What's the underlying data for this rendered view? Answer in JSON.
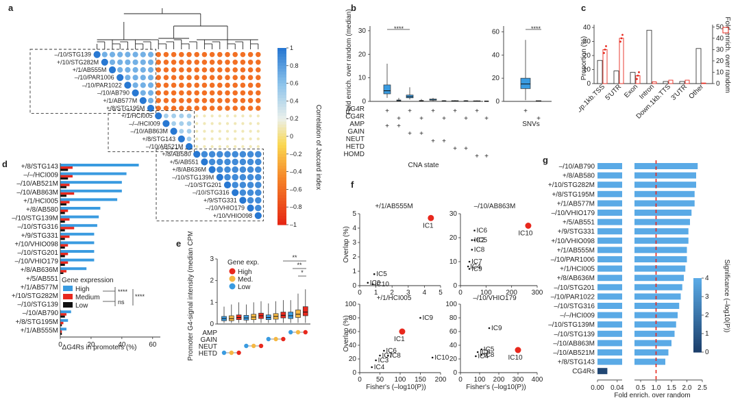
{
  "colors": {
    "blue": "#3a9be0",
    "red": "#e8281d",
    "black": "#111111",
    "orange": "#f5b843",
    "dark_blue": "#1c3f6b"
  },
  "panels": {
    "a": {
      "label": "a",
      "rows": [
        "–/10/STG139",
        "+/10/STG282M",
        "+/1/AB555M",
        "–/10/PAR1006",
        "–/10/PAR1022",
        "–/10/AB790",
        "+/1/AB577M",
        "+/8/STG195M",
        "+/1/HCI005",
        "–/–/HCI009",
        "–/10/AB863M",
        "+/8/STG143",
        "–/10/AB521M",
        "+/8/AB580",
        "+/5/AB551",
        "+/8/AB636M",
        "–/10/STG139M",
        "–/10/STG201",
        "–/10/STG316",
        "+/9/STG331",
        "–/10/VHIO179",
        "+/10/VHIO098"
      ],
      "colorbar_label": "Correlation of Jaccard index",
      "colorbar_ticks": [
        "1",
        "0.8",
        "0.6",
        "0.4",
        "0.2",
        "0",
        "–0.2",
        "–0.4",
        "–0.6",
        "–0.8",
        "–1"
      ]
    },
    "b": {
      "label": "b",
      "ylabel": "Fold enrich. over random (median)",
      "y_ticks_left": [
        "0",
        "10",
        "20",
        "30"
      ],
      "y_ticks_right": [
        "0",
        "20",
        "40",
        "60"
      ],
      "sig": "****",
      "row_labels": [
        "ΔG4R",
        "CG4R",
        "AMP",
        "GAIN",
        "NEUT",
        "HETD",
        "HOMD"
      ],
      "xlabel": "CNA state",
      "snv_label": "SNVs",
      "plus": "+"
    },
    "c": {
      "label": "c",
      "ylabel": "Proportion (%)",
      "y2label": "Fold enrich. over random",
      "y_ticks_left": [
        "0",
        "10",
        "20",
        "30",
        "40"
      ],
      "y_ticks_right": [
        "0",
        "10",
        "20",
        "30",
        "40",
        "50"
      ],
      "categories": [
        "Up.1kb.TSS",
        "5′UTR",
        "Exon",
        "Intron",
        "Down.1kb.TTS",
        "3′UTR",
        "Other"
      ]
    },
    "d": {
      "label": "d",
      "xlabel": "ΔG4Rs in promoters (%)",
      "x_ticks": [
        "0",
        "20",
        "40",
        "60"
      ],
      "legend_title": "Gene expression",
      "legend": [
        "High",
        "Medium",
        "Low"
      ],
      "sig1": "****",
      "sig2": "ns",
      "sig3": "****"
    },
    "e": {
      "label": "e",
      "ylabel": "Promoter G4-signal intensity (median CPM)",
      "y_ticks": [
        "0",
        "1",
        "2",
        "3"
      ],
      "legend_title": "Gene exp.",
      "legend": [
        "High",
        "Med.",
        "Low"
      ],
      "row_labels": [
        "AMP",
        "GAIN",
        "NEUT",
        "HETD"
      ],
      "sig": [
        "**",
        "**",
        "*"
      ]
    },
    "f": {
      "label": "f",
      "ylabel": "Overlap (%)",
      "xlabel": "Fisher's (–log10(P))",
      "titles": [
        "+/1/AB555M",
        "–/10/AB863M",
        "+/1/HCI005",
        "–/10/VHIO179"
      ]
    },
    "g": {
      "label": "g",
      "xlabel": "Fold enrich. over random",
      "x_ticks_left": [
        "0.00",
        "0.04"
      ],
      "x_ticks_right": [
        "0.5",
        "1.0",
        "1.5",
        "2.0",
        "2.5"
      ],
      "colorbar_label": "Significance (–log10(P))",
      "colorbar_ticks": [
        "4",
        "3",
        "2",
        "1",
        "0"
      ]
    }
  },
  "chart_data": [
    {
      "panel": "a",
      "type": "heatmap",
      "title": "Correlation of Jaccard index",
      "ylabels": [
        "–/10/STG139",
        "+/10/STG282M",
        "+/1/AB555M",
        "–/10/PAR1006",
        "–/10/PAR1022",
        "–/10/AB790",
        "+/1/AB577M",
        "+/8/STG195M",
        "+/1/HCI005",
        "–/–/HCI009",
        "–/10/AB863M",
        "+/8/STG143",
        "–/10/AB521M",
        "+/8/AB580",
        "+/5/AB551",
        "+/8/AB636M",
        "–/10/STG139M",
        "–/10/STG201",
        "–/10/STG316",
        "+/9/STG331",
        "–/10/VHIO179",
        "+/10/VHIO098"
      ],
      "blocks": [
        {
          "name": "cluster 1",
          "rows": [
            0,
            7
          ],
          "corr": 0.7
        },
        {
          "name": "cluster 2",
          "rows": [
            8,
            12
          ],
          "corr": 0.5
        },
        {
          "name": "cluster 3",
          "rows": [
            13,
            21
          ],
          "corr": 0.9
        }
      ],
      "off_block_cluster1_vs_rest": -0.6,
      "range": [
        -1,
        1
      ]
    },
    {
      "panel": "b",
      "type": "box",
      "ylabel": "Fold enrich. over random (median)",
      "groups": [
        "AMP/ΔG4R",
        "AMP/CG4R",
        "GAIN/ΔG4R",
        "GAIN/CG4R",
        "NEUT/ΔG4R",
        "NEUT/CG4R",
        "HETD/ΔG4R",
        "HETD/CG4R",
        "HOMD/ΔG4R",
        "HOMD/CG4R"
      ],
      "median": [
        4.5,
        0.3,
        2.0,
        0.2,
        0.6,
        0.2,
        0.2,
        0.2,
        0.15,
        0.1
      ],
      "q1": [
        3.2,
        0.1,
        1.5,
        0.1,
        0.5,
        0.1,
        0.1,
        0.1,
        0.05,
        0.05
      ],
      "q3": [
        7.0,
        0.6,
        2.7,
        0.4,
        1.0,
        0.3,
        0.3,
        0.3,
        0.25,
        0.2
      ],
      "whisker_low": [
        1.5,
        0,
        0.8,
        0,
        0.2,
        0,
        0,
        0,
        0,
        0
      ],
      "whisker_high": [
        16,
        1.5,
        6,
        1,
        1.5,
        0.5,
        0.5,
        0.5,
        0.4,
        0.3
      ],
      "ylim": [
        0,
        32
      ],
      "snv": {
        "median": 15,
        "q1": 11,
        "q3": 20,
        "whisker_low": 1,
        "whisker_high": 53,
        "cg4r_median": 0.5,
        "ylim": [
          0,
          65
        ]
      }
    },
    {
      "panel": "c",
      "type": "bar",
      "categories": [
        "Up.1kb.TSS",
        "5′UTR",
        "Exon",
        "Intron",
        "Down.1kb.TTS",
        "3′UTR",
        "Other"
      ],
      "series": [
        {
          "name": "Proportion (%)",
          "values": [
            16.5,
            9,
            8,
            38,
            1.5,
            1.5,
            25
          ]
        },
        {
          "name": "Fold enrich. over random",
          "values": [
            30,
            40,
            7,
            1.5,
            3,
            3,
            0.5
          ]
        }
      ],
      "ylim": [
        0,
        42
      ],
      "y2lim": [
        0,
        52
      ]
    },
    {
      "panel": "d",
      "type": "bar",
      "orientation": "horizontal",
      "categories": [
        "+/8/STG143",
        "–/–/HCI009",
        "–/10/AB521M",
        "–/10/AB863M",
        "+/1/HCI005",
        "+/8/AB580",
        "–/10/STG139M",
        "–/10/STG316",
        "+/9/STG331",
        "+/10/VHIO098",
        "–/10/STG201",
        "–/10/VHIO179",
        "+/8/AB636M",
        "+/5/AB551",
        "+/1/AB577M",
        "+/10/STG282M",
        "–/10/STG139",
        "–/10/AB790",
        "+/8/STG195M",
        "+/1/AB555M"
      ],
      "series": [
        {
          "name": "High",
          "values": [
            51,
            43,
            40,
            40,
            37,
            26,
            25,
            24,
            22,
            22,
            22,
            22,
            17,
            14,
            9,
            9,
            7,
            7,
            5,
            4
          ]
        },
        {
          "name": "Medium",
          "values": [
            8,
            8,
            6,
            9,
            6,
            5,
            6,
            9,
            6,
            5,
            5,
            5,
            4,
            3,
            4,
            3,
            3,
            4,
            2,
            1
          ]
        },
        {
          "name": "Low",
          "values": [
            5,
            5,
            4,
            4,
            4,
            3,
            3,
            3,
            3,
            3,
            3,
            3,
            2,
            2,
            1,
            2,
            1,
            3,
            1,
            1
          ]
        }
      ],
      "xlim": [
        0,
        65
      ],
      "xlabel": "ΔG4Rs in promoters (%)"
    },
    {
      "panel": "e",
      "type": "box",
      "groups": [
        "HETD/Low",
        "HETD/Med",
        "HETD/High",
        "NEUT/Low",
        "NEUT/Med",
        "NEUT/High",
        "GAIN/Low",
        "GAIN/Med",
        "GAIN/High",
        "AMP/Low",
        "AMP/Med",
        "AMP/High"
      ],
      "median": [
        0.25,
        0.25,
        0.3,
        0.28,
        0.32,
        0.38,
        0.3,
        0.35,
        0.4,
        0.38,
        0.45,
        0.55
      ],
      "q1": [
        0.15,
        0.15,
        0.2,
        0.18,
        0.2,
        0.25,
        0.2,
        0.22,
        0.28,
        0.25,
        0.3,
        0.38
      ],
      "q3": [
        0.35,
        0.38,
        0.42,
        0.4,
        0.45,
        0.5,
        0.42,
        0.48,
        0.55,
        0.55,
        0.65,
        0.8
      ],
      "whisker_high": [
        0.8,
        0.9,
        1.0,
        0.9,
        1.0,
        1.05,
        0.95,
        1.05,
        1.1,
        1.1,
        1.4,
        1.6
      ],
      "ylim": [
        0,
        3
      ]
    },
    {
      "panel": "f",
      "type": "scatter",
      "subplots": [
        {
          "title": "+/1/AB555M",
          "xlim": [
            0,
            5
          ],
          "ylim": [
            0,
            5
          ],
          "xticks": [
            0,
            1,
            2,
            3,
            4,
            5
          ],
          "yticks": [
            0,
            1,
            2,
            3,
            4,
            5
          ],
          "points": [
            {
              "label": "IC1",
              "x": 4.4,
              "y": 4.7,
              "highlight": true
            },
            {
              "label": "IC5",
              "x": 0.9,
              "y": 0.8
            },
            {
              "label": "IC6",
              "x": 0.5,
              "y": 0.2
            },
            {
              "label": "IC10",
              "x": 0.8,
              "y": 0.1
            }
          ]
        },
        {
          "title": "–/10/AB863M",
          "xlim": [
            0,
            300
          ],
          "ylim": [
            0,
            30
          ],
          "xticks": [
            0,
            100,
            200,
            300
          ],
          "yticks": [
            0,
            10,
            20,
            30
          ],
          "points": [
            {
              "label": "IC10",
              "x": 265,
              "y": 25,
              "highlight": true
            },
            {
              "label": "IC6",
              "x": 55,
              "y": 23
            },
            {
              "label": "IC2",
              "x": 45,
              "y": 19
            },
            {
              "label": "IC5",
              "x": 55,
              "y": 19
            },
            {
              "label": "IC8",
              "x": 45,
              "y": 15
            },
            {
              "label": "IC7",
              "x": 35,
              "y": 10
            },
            {
              "label": "IC4",
              "x": 30,
              "y": 8
            },
            {
              "label": "IC9",
              "x": 35,
              "y": 7
            }
          ]
        },
        {
          "title": "+/1/HCI005",
          "xlim": [
            0,
            200
          ],
          "ylim": [
            0,
            100
          ],
          "xticks": [
            0,
            50,
            100,
            150,
            200
          ],
          "yticks": [
            0,
            20,
            40,
            60,
            80,
            100
          ],
          "points": [
            {
              "label": "IC1",
              "x": 105,
              "y": 60,
              "highlight": true
            },
            {
              "label": "IC9",
              "x": 150,
              "y": 80
            },
            {
              "label": "IC10",
              "x": 180,
              "y": 22
            },
            {
              "label": "IC6",
              "x": 60,
              "y": 32
            },
            {
              "label": "IC7",
              "x": 50,
              "y": 25
            },
            {
              "label": "IC8",
              "x": 70,
              "y": 25
            },
            {
              "label": "IC3",
              "x": 40,
              "y": 18
            },
            {
              "label": "IC4",
              "x": 30,
              "y": 8
            }
          ]
        },
        {
          "title": "–/10/VHIO179",
          "xlim": [
            0,
            400
          ],
          "ylim": [
            0,
            100
          ],
          "xticks": [
            0,
            100,
            200,
            300,
            400
          ],
          "yticks": [
            0,
            20,
            40,
            60,
            80,
            100
          ],
          "points": [
            {
              "label": "IC10",
              "x": 300,
              "y": 33,
              "highlight": true
            },
            {
              "label": "IC9",
              "x": 150,
              "y": 65
            },
            {
              "label": "IC5",
              "x": 110,
              "y": 34
            },
            {
              "label": "IC6",
              "x": 90,
              "y": 30
            },
            {
              "label": "IC8",
              "x": 110,
              "y": 26
            },
            {
              "label": "IC4",
              "x": 80,
              "y": 24
            }
          ]
        }
      ],
      "xlabel": "Fisher's (–log10(P))",
      "ylabel": "Overlap (%)"
    },
    {
      "panel": "g",
      "type": "bar",
      "orientation": "horizontal",
      "categories": [
        "–/10/AB790",
        "+/8/AB580",
        "+/10/STG282M",
        "+/8/STG195M",
        "+/1/AB577M",
        "–/10/VHIO179",
        "+/5/AB551",
        "+/9/STG331",
        "+/10/VHIO098",
        "+/1/AB555M",
        "–/10/PAR1006",
        "+/1/HCI005",
        "+/8/AB636M",
        "–/10/STG201",
        "–/10/PAR1022",
        "–/10/STG316",
        "–/–/HCI009",
        "–/10/STG139M",
        "–/10/STG139",
        "–/10/AB863M",
        "–/10/AB521M",
        "+/8/STG143",
        "CG4Rs"
      ],
      "values": [
        2.35,
        2.3,
        2.3,
        2.25,
        2.25,
        2.15,
        2.1,
        2.05,
        2.05,
        2.0,
        2.0,
        1.95,
        1.9,
        1.85,
        1.8,
        1.75,
        1.7,
        1.65,
        1.6,
        1.5,
        1.4,
        1.3,
        0.02
      ],
      "significance": [
        4,
        4,
        4,
        4,
        4,
        4,
        4,
        4,
        4,
        4,
        4,
        4,
        4,
        4,
        4,
        4,
        4,
        4,
        4,
        4,
        4,
        4,
        0.3
      ],
      "reference_line": 1.0,
      "xlim_left": [
        0,
        0.05
      ],
      "xlim_right": [
        0.3,
        2.5
      ],
      "xlabel": "Fold enrich. over random"
    }
  ]
}
